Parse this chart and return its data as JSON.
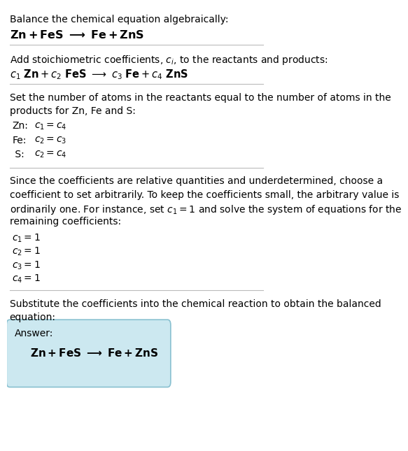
{
  "title_line1": "Balance the chemical equation algebraically:",
  "section2_intro": "Add stoichiometric coefficients, $c_i$, to the reactants and products:",
  "section3_intro_l1": "Set the number of atoms in the reactants equal to the number of atoms in the",
  "section3_intro_l2": "products for Zn, Fe and S:",
  "section4_intro": [
    "Since the coefficients are relative quantities and underdetermined, choose a",
    "coefficient to set arbitrarily. To keep the coefficients small, the arbitrary value is",
    "ordinarily one. For instance, set $c_1 = 1$ and solve the system of equations for the",
    "remaining coefficients:"
  ],
  "section5_intro_l1": "Substitute the coefficients into the chemical reaction to obtain the balanced",
  "section5_intro_l2": "equation:",
  "answer_label": "Answer:",
  "bg_color": "#ffffff",
  "text_color": "#000000",
  "box_facecolor": "#cce8f0",
  "box_edgecolor": "#88c0d0",
  "separator_color": "#bbbbbb",
  "font_size": 10
}
